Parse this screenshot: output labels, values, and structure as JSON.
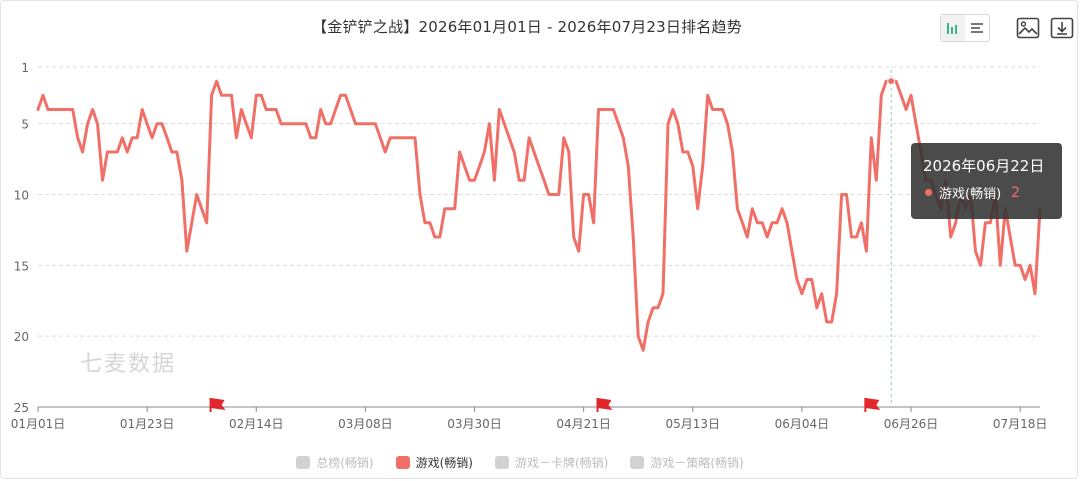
{
  "title": "【金铲铲之战】2026年01月01日 - 2026年07月23日排名趋势",
  "watermark": "七麦数据",
  "toolbar": {
    "icons": [
      "bar-chart-icon",
      "list-icon",
      "image-icon",
      "download-icon"
    ]
  },
  "legend": [
    {
      "label": "总榜(畅销)",
      "active": false
    },
    {
      "label": "游戏(畅销)",
      "active": true
    },
    {
      "label": "游戏－卡牌(畅销)",
      "active": false
    },
    {
      "label": "游戏－策略(畅销)",
      "active": false
    }
  ],
  "tooltip": {
    "date": "2026年06月22日",
    "series": "游戏(畅销)",
    "value": "2"
  },
  "colors": {
    "line": "#f07068",
    "grid": "#dcdcdc",
    "axis": "#666666",
    "flag": "#e3262c"
  },
  "chart_data": {
    "type": "line",
    "title": "【金铲铲之战】2026年01月01日 - 2026年07月23日排名趋势",
    "y_inverted": true,
    "ylim": [
      1,
      25
    ],
    "y_ticks": [
      "1",
      "5",
      "10",
      "15",
      "20",
      "25"
    ],
    "x_tick_labels": [
      "01月01日",
      "01月23日",
      "02月14日",
      "03月08日",
      "03月30日",
      "04月21日",
      "05月13日",
      "06月04日",
      "06月26日",
      "07月18日"
    ],
    "x_tick_days": [
      0,
      22,
      44,
      66,
      88,
      110,
      132,
      154,
      176,
      198
    ],
    "event_flag_days": [
      36,
      114,
      168
    ],
    "series": [
      {
        "name": "游戏(畅销)",
        "points": [
          [
            0,
            4
          ],
          [
            1,
            3
          ],
          [
            2,
            4
          ],
          [
            3,
            4
          ],
          [
            4,
            4
          ],
          [
            5,
            4
          ],
          [
            6,
            4
          ],
          [
            7,
            4
          ],
          [
            8,
            6
          ],
          [
            9,
            7
          ],
          [
            10,
            5
          ],
          [
            11,
            4
          ],
          [
            12,
            5
          ],
          [
            13,
            9
          ],
          [
            14,
            7
          ],
          [
            15,
            7
          ],
          [
            16,
            7
          ],
          [
            17,
            6
          ],
          [
            18,
            7
          ],
          [
            19,
            6
          ],
          [
            20,
            6
          ],
          [
            21,
            4
          ],
          [
            22,
            5
          ],
          [
            23,
            6
          ],
          [
            24,
            5
          ],
          [
            25,
            5
          ],
          [
            26,
            6
          ],
          [
            27,
            7
          ],
          [
            28,
            7
          ],
          [
            29,
            9
          ],
          [
            30,
            14
          ],
          [
            31,
            12
          ],
          [
            32,
            10
          ],
          [
            33,
            11
          ],
          [
            34,
            12
          ],
          [
            35,
            3
          ],
          [
            36,
            2
          ],
          [
            37,
            3
          ],
          [
            38,
            3
          ],
          [
            39,
            3
          ],
          [
            40,
            6
          ],
          [
            41,
            4
          ],
          [
            42,
            5
          ],
          [
            43,
            6
          ],
          [
            44,
            3
          ],
          [
            45,
            3
          ],
          [
            46,
            4
          ],
          [
            47,
            4
          ],
          [
            48,
            4
          ],
          [
            49,
            5
          ],
          [
            50,
            5
          ],
          [
            51,
            5
          ],
          [
            52,
            5
          ],
          [
            53,
            5
          ],
          [
            54,
            5
          ],
          [
            55,
            6
          ],
          [
            56,
            6
          ],
          [
            57,
            4
          ],
          [
            58,
            5
          ],
          [
            59,
            5
          ],
          [
            60,
            4
          ],
          [
            61,
            3
          ],
          [
            62,
            3
          ],
          [
            63,
            4
          ],
          [
            64,
            5
          ],
          [
            65,
            5
          ],
          [
            66,
            5
          ],
          [
            67,
            5
          ],
          [
            68,
            5
          ],
          [
            69,
            6
          ],
          [
            70,
            7
          ],
          [
            71,
            6
          ],
          [
            72,
            6
          ],
          [
            73,
            6
          ],
          [
            74,
            6
          ],
          [
            75,
            6
          ],
          [
            76,
            6
          ],
          [
            77,
            10
          ],
          [
            78,
            12
          ],
          [
            79,
            12
          ],
          [
            80,
            13
          ],
          [
            81,
            13
          ],
          [
            82,
            11
          ],
          [
            83,
            11
          ],
          [
            84,
            11
          ],
          [
            85,
            7
          ],
          [
            86,
            8
          ],
          [
            87,
            9
          ],
          [
            88,
            9
          ],
          [
            89,
            8
          ],
          [
            90,
            7
          ],
          [
            91,
            5
          ],
          [
            92,
            9
          ],
          [
            93,
            4
          ],
          [
            94,
            5
          ],
          [
            95,
            6
          ],
          [
            96,
            7
          ],
          [
            97,
            9
          ],
          [
            98,
            9
          ],
          [
            99,
            6
          ],
          [
            100,
            7
          ],
          [
            101,
            8
          ],
          [
            102,
            9
          ],
          [
            103,
            10
          ],
          [
            104,
            10
          ],
          [
            105,
            10
          ],
          [
            106,
            6
          ],
          [
            107,
            7
          ],
          [
            108,
            13
          ],
          [
            109,
            14
          ],
          [
            110,
            10
          ],
          [
            111,
            10
          ],
          [
            112,
            12
          ],
          [
            113,
            4
          ],
          [
            114,
            4
          ],
          [
            115,
            4
          ],
          [
            116,
            4
          ],
          [
            117,
            5
          ],
          [
            118,
            6
          ],
          [
            119,
            8
          ],
          [
            120,
            13
          ],
          [
            121,
            20
          ],
          [
            122,
            21
          ],
          [
            123,
            19
          ],
          [
            124,
            18
          ],
          [
            125,
            18
          ],
          [
            126,
            17
          ],
          [
            127,
            5
          ],
          [
            128,
            4
          ],
          [
            129,
            5
          ],
          [
            130,
            7
          ],
          [
            131,
            7
          ],
          [
            132,
            8
          ],
          [
            133,
            11
          ],
          [
            134,
            8
          ],
          [
            135,
            3
          ],
          [
            136,
            4
          ],
          [
            137,
            4
          ],
          [
            138,
            4
          ],
          [
            139,
            5
          ],
          [
            140,
            7
          ],
          [
            141,
            11
          ],
          [
            142,
            12
          ],
          [
            143,
            13
          ],
          [
            144,
            11
          ],
          [
            145,
            12
          ],
          [
            146,
            12
          ],
          [
            147,
            13
          ],
          [
            148,
            12
          ],
          [
            149,
            12
          ],
          [
            150,
            11
          ],
          [
            151,
            12
          ],
          [
            152,
            14
          ],
          [
            153,
            16
          ],
          [
            154,
            17
          ],
          [
            155,
            16
          ],
          [
            156,
            16
          ],
          [
            157,
            18
          ],
          [
            158,
            17
          ],
          [
            159,
            19
          ],
          [
            160,
            19
          ],
          [
            161,
            17
          ],
          [
            162,
            10
          ],
          [
            163,
            10
          ],
          [
            164,
            13
          ],
          [
            165,
            13
          ],
          [
            166,
            12
          ],
          [
            167,
            14
          ],
          [
            168,
            6
          ],
          [
            169,
            9
          ],
          [
            170,
            3
          ],
          [
            171,
            2
          ],
          [
            172,
            2
          ],
          [
            173,
            2
          ],
          [
            174,
            3
          ],
          [
            175,
            4
          ],
          [
            176,
            3
          ],
          [
            177,
            5
          ],
          [
            178,
            7
          ],
          [
            179,
            9
          ],
          [
            180,
            9
          ],
          [
            181,
            10
          ],
          [
            182,
            11
          ],
          [
            183,
            9
          ],
          [
            184,
            13
          ],
          [
            185,
            12
          ],
          [
            186,
            10
          ],
          [
            187,
            11
          ],
          [
            188,
            10
          ],
          [
            189,
            14
          ],
          [
            190,
            15
          ],
          [
            191,
            12
          ],
          [
            192,
            12
          ],
          [
            193,
            10
          ],
          [
            194,
            15
          ],
          [
            195,
            11
          ],
          [
            196,
            13
          ],
          [
            197,
            15
          ],
          [
            198,
            15
          ],
          [
            199,
            16
          ],
          [
            200,
            15
          ],
          [
            201,
            17
          ],
          [
            202,
            11
          ]
        ]
      }
    ],
    "highlight": {
      "day": 172,
      "value": 2
    }
  }
}
